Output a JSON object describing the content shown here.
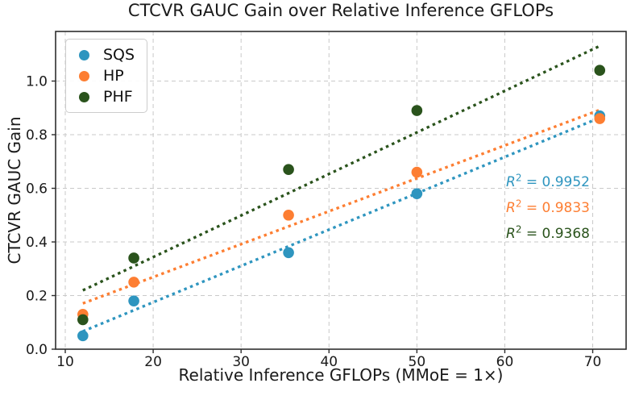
{
  "chart_data": {
    "type": "scatter",
    "title": "CTCVR GAUC Gain over Relative Inference GFLOPs",
    "xlabel": "Relative Inference GFLOPs (MMoE = 1×)",
    "ylabel": "CTCVR GAUC Gain",
    "x": [
      12,
      17.8,
      35.4,
      50,
      70.8
    ],
    "series": [
      {
        "name": "SQS",
        "color": "#2E95BF",
        "values": [
          0.05,
          0.18,
          0.36,
          0.58,
          0.87
        ],
        "r2": "0.9952"
      },
      {
        "name": "HP",
        "color": "#FD7E32",
        "values": [
          0.13,
          0.25,
          0.5,
          0.66,
          0.86
        ],
        "r2": "0.9833"
      },
      {
        "name": "PHF",
        "color": "#2A531C",
        "values": [
          0.11,
          0.34,
          0.67,
          0.89,
          1.04
        ],
        "r2": "0.9368"
      }
    ],
    "trendline": "linear least-squares fit per series, dotted",
    "x_ticks": [
      10,
      20,
      30,
      40,
      50,
      60,
      70
    ],
    "x_tick_labels": [
      "10",
      "20",
      "30",
      "40",
      "50",
      "60",
      "70"
    ],
    "y_ticks": [
      0.0,
      0.2,
      0.4,
      0.6,
      0.8,
      1.0
    ],
    "y_tick_labels": [
      "0.0",
      "0.2",
      "0.4",
      "0.6",
      "0.8",
      "1.0"
    ],
    "xlim": [
      8.9,
      73.8
    ],
    "ylim": [
      0,
      1.185
    ],
    "grid": true,
    "legend_position": "upper left"
  },
  "annotations": [
    {
      "series": "SQS",
      "r": "R",
      "exp": "2",
      "eq": " = ",
      "value": "0.9952"
    },
    {
      "series": "HP",
      "r": "R",
      "exp": "2",
      "eq": " = ",
      "value": "0.9833"
    },
    {
      "series": "PHF",
      "r": "R",
      "exp": "2",
      "eq": " = ",
      "value": "0.9368"
    }
  ],
  "style_colors": {
    "grid": "#c9c9c9",
    "spine": "#2e2e2e",
    "text": "#1a1a1a"
  }
}
